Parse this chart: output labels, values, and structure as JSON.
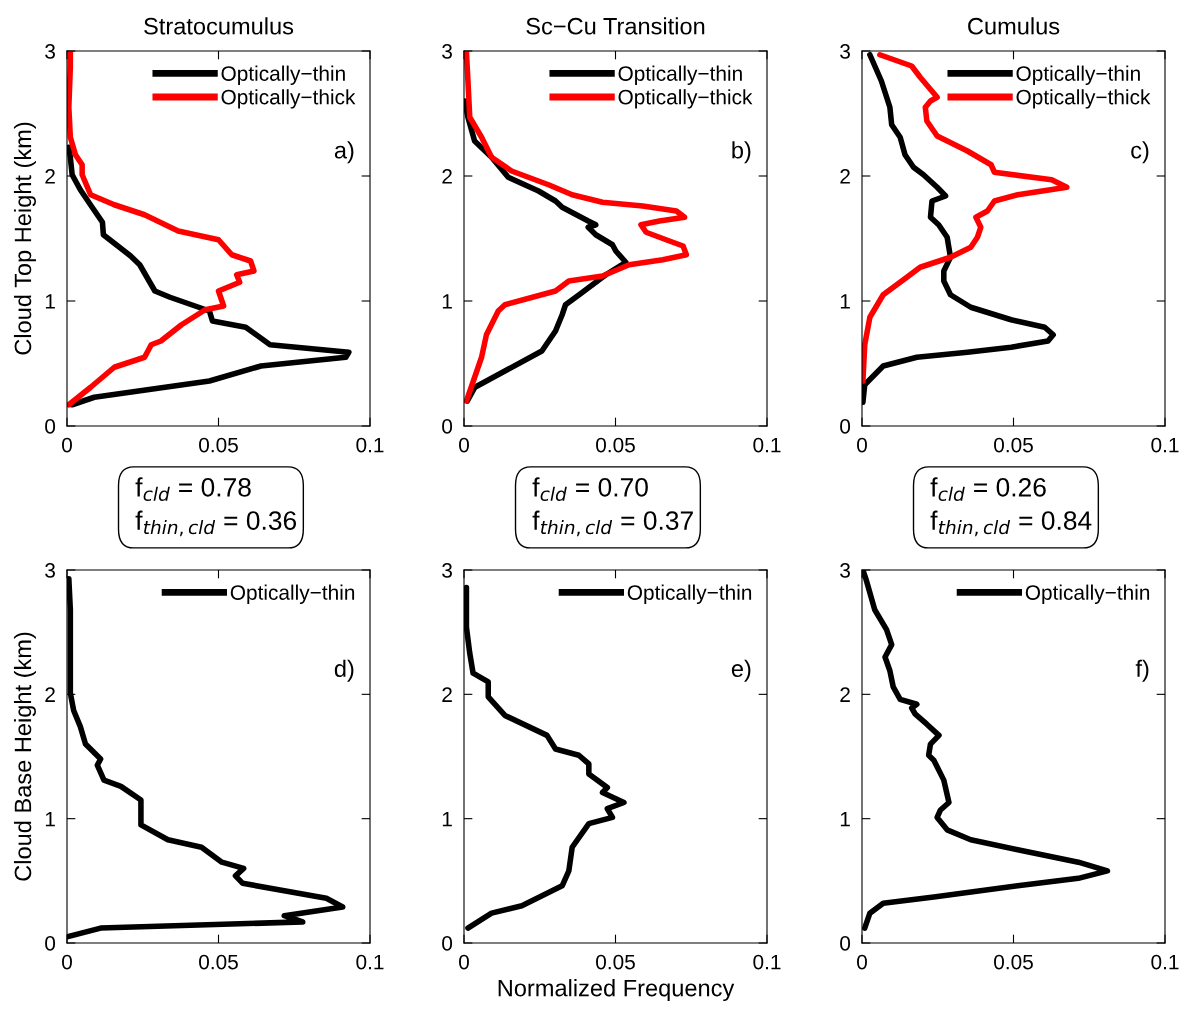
{
  "chart_data": [
    {
      "type": "line",
      "title": "Stratocumulus",
      "ylabel": "Cloud Top Height (km)",
      "xlim": [
        0,
        0.1
      ],
      "xticks": [
        0,
        0.05,
        0.1
      ],
      "ylim": [
        0,
        3
      ],
      "yticks": [
        0,
        1,
        2,
        3
      ],
      "legend": "top right",
      "annotations": [
        "a)",
        "f$_{cld}$ = 0.78",
        "f$_{thin,cld}$ = 0.36"
      ],
      "series": [
        {
          "name": "Optically−thin",
          "color": "#000000",
          "x": [
            0.0017,
            0.009,
            0.047,
            0.064,
            0.092,
            0.093,
            0.067,
            0.059,
            0.048,
            0.047,
            0.034,
            0.029,
            0.024,
            0.021,
            0.012,
            0.0117,
            0.0083,
            0.0044,
            0.0017,
            0.0011,
            0.0006
          ],
          "values": [
            0.17,
            0.23,
            0.36,
            0.48,
            0.55,
            0.59,
            0.65,
            0.79,
            0.84,
            0.92,
            1.03,
            1.08,
            1.29,
            1.36,
            1.53,
            1.63,
            1.75,
            1.89,
            2.01,
            2.15,
            2.23
          ]
        },
        {
          "name": "Optically−thick",
          "color": "#ff0000",
          "x": [
            0.0006,
            0.0078,
            0.0156,
            0.0256,
            0.0278,
            0.031,
            0.0378,
            0.0456,
            0.0517,
            0.05,
            0.057,
            0.056,
            0.0617,
            0.0606,
            0.0544,
            0.05,
            0.0367,
            0.0256,
            0.0156,
            0.0078,
            0.005,
            0.005,
            0.0028,
            0.0011,
            0.0006,
            0.0011,
            0.0011
          ],
          "values": [
            0.17,
            0.31,
            0.47,
            0.55,
            0.65,
            0.68,
            0.81,
            0.93,
            0.96,
            1.08,
            1.15,
            1.21,
            1.24,
            1.32,
            1.37,
            1.49,
            1.56,
            1.69,
            1.77,
            1.85,
            2.01,
            2.09,
            2.17,
            2.31,
            2.55,
            2.87,
            2.99
          ]
        }
      ]
    },
    {
      "type": "line",
      "title": "Sc−Cu Transition",
      "xlim": [
        0,
        0.1
      ],
      "xticks": [
        0,
        0.05,
        0.1
      ],
      "ylim": [
        0,
        3
      ],
      "yticks": [
        0,
        1,
        2,
        3
      ],
      "legend": "top right",
      "annotations": [
        "b)",
        "f$_{cld}$ = 0.70",
        "f$_{thin,cld}$ = 0.37"
      ],
      "series": [
        {
          "name": "Optically−thin",
          "color": "#000000",
          "x": [
            0.0011,
            0.0036,
            0.0135,
            0.0257,
            0.0302,
            0.0324,
            0.0335,
            0.038,
            0.0468,
            0.0534,
            0.0501,
            0.049,
            0.0435,
            0.041,
            0.0435,
            0.041,
            0.0324,
            0.0302,
            0.0246,
            0.0146,
            0.0091,
            0.0035,
            0.0013,
            0.0002
          ],
          "values": [
            0.2,
            0.31,
            0.44,
            0.6,
            0.76,
            0.89,
            0.97,
            1.05,
            1.21,
            1.31,
            1.4,
            1.45,
            1.53,
            1.59,
            1.61,
            1.64,
            1.75,
            1.8,
            1.88,
            1.99,
            2.15,
            2.28,
            2.47,
            2.6
          ]
        },
        {
          "name": "Optically−thick",
          "color": "#ff0000",
          "x": [
            0.0008,
            0.0058,
            0.0074,
            0.0113,
            0.0135,
            0.0302,
            0.0346,
            0.0457,
            0.0545,
            0.0656,
            0.0734,
            0.0723,
            0.0678,
            0.0601,
            0.0584,
            0.0645,
            0.0728,
            0.0701,
            0.059,
            0.0457,
            0.0357,
            0.0279,
            0.0157,
            0.0091,
            0.0058,
            0.0019,
            0.0013,
            0.0008
          ],
          "values": [
            0.2,
            0.55,
            0.73,
            0.92,
            0.97,
            1.08,
            1.16,
            1.2,
            1.29,
            1.33,
            1.37,
            1.44,
            1.48,
            1.55,
            1.61,
            1.64,
            1.67,
            1.72,
            1.76,
            1.79,
            1.85,
            1.93,
            2.04,
            2.15,
            2.31,
            2.47,
            2.76,
            2.99
          ]
        }
      ]
    },
    {
      "type": "line",
      "title": "Cumulus",
      "xlim": [
        0,
        0.1
      ],
      "xticks": [
        0,
        0.05,
        0.1
      ],
      "ylim": [
        0,
        3
      ],
      "yticks": [
        0,
        1,
        2,
        3
      ],
      "legend": "top right",
      "annotations": [
        "c)",
        "f$_{cld}$ = 0.26",
        "f$_{thin,cld}$ = 0.84"
      ],
      "series": [
        {
          "name": "Optically−thin",
          "color": "#000000",
          "x": [
            0.0003,
            0.0009,
            0.007,
            0.0181,
            0.0348,
            0.0492,
            0.0614,
            0.0631,
            0.0603,
            0.0492,
            0.0359,
            0.0292,
            0.027,
            0.027,
            0.0292,
            0.0281,
            0.0253,
            0.0226,
            0.0231,
            0.0276,
            0.0248,
            0.0203,
            0.017,
            0.0142,
            0.0126,
            0.0098,
            0.0092,
            0.0064,
            0.0026
          ],
          "values": [
            0.19,
            0.33,
            0.48,
            0.55,
            0.59,
            0.63,
            0.68,
            0.73,
            0.79,
            0.85,
            0.95,
            1.05,
            1.16,
            1.24,
            1.35,
            1.51,
            1.61,
            1.67,
            1.8,
            1.84,
            1.91,
            2.01,
            2.07,
            2.17,
            2.31,
            2.41,
            2.55,
            2.76,
            2.97
          ]
        },
        {
          "name": "Optically−thick",
          "color": "#ff0000",
          "x": [
            0.0003,
            0.0009,
            0.0026,
            0.007,
            0.0148,
            0.0192,
            0.0292,
            0.0359,
            0.0381,
            0.0392,
            0.0376,
            0.0414,
            0.0437,
            0.0514,
            0.0676,
            0.0626,
            0.0437,
            0.0426,
            0.0348,
            0.0248,
            0.0214,
            0.0209,
            0.0226,
            0.0248,
            0.0192,
            0.0164,
            0.0059
          ],
          "values": [
            0.36,
            0.65,
            0.87,
            1.05,
            1.19,
            1.27,
            1.35,
            1.43,
            1.51,
            1.59,
            1.67,
            1.72,
            1.8,
            1.85,
            1.91,
            1.97,
            2.03,
            2.09,
            2.2,
            2.32,
            2.44,
            2.55,
            2.6,
            2.63,
            2.79,
            2.88,
            2.97
          ]
        }
      ]
    },
    {
      "type": "line",
      "ylabel": "Cloud Base Height (km)",
      "xlim": [
        0,
        0.1
      ],
      "xticks": [
        0,
        0.05,
        0.1
      ],
      "ylim": [
        0,
        3
      ],
      "yticks": [
        0,
        1,
        2,
        3
      ],
      "legend": "top right",
      "annotations": [
        "d)"
      ],
      "series": [
        {
          "name": "Optically−thin",
          "color": "#000000",
          "x": [
            0,
            0.0111,
            0.0778,
            0.0717,
            0.091,
            0.0856,
            0.058,
            0.0556,
            0.0583,
            0.0511,
            0.0444,
            0.0333,
            0.0244,
            0.0244,
            0.0178,
            0.0122,
            0.01,
            0.0111,
            0.0061,
            0.0044,
            0.0022,
            0.0011,
            0.0011,
            0.0011,
            0.0006
          ],
          "values": [
            0.05,
            0.12,
            0.17,
            0.22,
            0.29,
            0.36,
            0.48,
            0.54,
            0.6,
            0.65,
            0.77,
            0.83,
            0.95,
            1.15,
            1.26,
            1.31,
            1.43,
            1.48,
            1.6,
            1.74,
            1.87,
            2.01,
            2.27,
            2.68,
            2.93
          ]
        }
      ]
    },
    {
      "type": "line",
      "xlabel": "Normalized Frequency",
      "xlim": [
        0,
        0.1
      ],
      "xticks": [
        0,
        0.05,
        0.1
      ],
      "ylim": [
        0,
        3
      ],
      "yticks": [
        0,
        1,
        2,
        3
      ],
      "legend": "top right",
      "annotations": [
        "e)"
      ],
      "series": [
        {
          "name": "Optically−thin",
          "color": "#000000",
          "x": [
            0.0013,
            0.0091,
            0.0191,
            0.0324,
            0.0346,
            0.0357,
            0.0412,
            0.049,
            0.0473,
            0.0528,
            0.0457,
            0.0473,
            0.0412,
            0.0412,
            0.0379,
            0.0302,
            0.0274,
            0.0135,
            0.008,
            0.008,
            0.003,
            0.0019,
            0.0008,
            0.0008
          ],
          "values": [
            0.12,
            0.24,
            0.3,
            0.46,
            0.58,
            0.77,
            0.96,
            1.01,
            1.08,
            1.13,
            1.21,
            1.25,
            1.36,
            1.44,
            1.51,
            1.56,
            1.67,
            1.83,
            1.98,
            2.1,
            2.17,
            2.33,
            2.54,
            2.86
          ]
        }
      ]
    },
    {
      "type": "line",
      "xlim": [
        0,
        0.1
      ],
      "xticks": [
        0,
        0.05,
        0.1
      ],
      "ylim": [
        0,
        3
      ],
      "yticks": [
        0,
        1,
        2,
        3
      ],
      "legend": "top right",
      "annotations": [
        "f)"
      ],
      "series": [
        {
          "name": "Optically−thin",
          "color": "#000000",
          "x": [
            0.0009,
            0.0026,
            0.007,
            0.0237,
            0.0514,
            0.0714,
            0.081,
            0.0714,
            0.0514,
            0.0359,
            0.0281,
            0.0248,
            0.0259,
            0.0287,
            0.027,
            0.0237,
            0.022,
            0.0226,
            0.0254,
            0.0214,
            0.0176,
            0.0164,
            0.0181,
            0.0126,
            0.0103,
            0.0092,
            0.0076,
            0.0098,
            0.0081,
            0.0042,
            0.0014,
            0.0003
          ],
          "values": [
            0.12,
            0.24,
            0.32,
            0.37,
            0.46,
            0.52,
            0.58,
            0.65,
            0.75,
            0.83,
            0.91,
            1.01,
            1.07,
            1.13,
            1.31,
            1.47,
            1.51,
            1.6,
            1.67,
            1.76,
            1.84,
            1.89,
            1.92,
            1.96,
            2.06,
            2.19,
            2.3,
            2.4,
            2.52,
            2.68,
            2.92,
            3.0
          ]
        }
      ]
    }
  ]
}
